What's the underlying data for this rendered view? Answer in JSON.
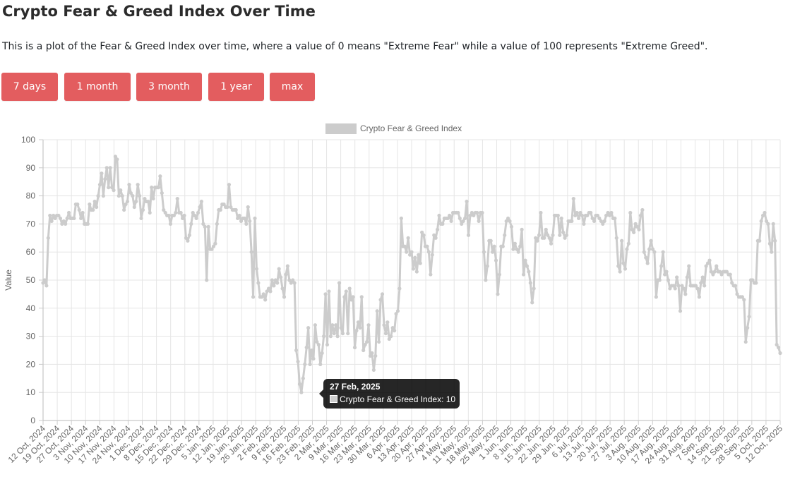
{
  "page": {
    "title": "Crypto Fear & Greed Index Over Time",
    "description": "This is a plot of the Fear & Greed Index over time, where a value of 0 means \"Extreme Fear\" while a value of 100 represents \"Extreme Greed\".",
    "accent_color": "#e35d5f"
  },
  "range_buttons": [
    {
      "label": "7 days"
    },
    {
      "label": "1 month"
    },
    {
      "label": "3 month"
    },
    {
      "label": "1 year"
    },
    {
      "label": "max"
    }
  ],
  "tooltip": {
    "title": "27 Feb, 2025",
    "label": "Crypto Fear & Greed Index: 10"
  },
  "chart_data": {
    "type": "line",
    "legend": "Crypto Fear & Greed Index",
    "legend_position": "top-center",
    "ylabel": "Value",
    "xlabel": "",
    "ylim": [
      0,
      100
    ],
    "yticks": [
      0,
      10,
      20,
      30,
      40,
      50,
      60,
      70,
      80,
      90,
      100
    ],
    "grid": true,
    "line_color": "#cccccc",
    "x_start": "12 Oct, 2024",
    "x_end": "12 Oct, 2025",
    "xtick_labels": [
      "12 Oct, 2024",
      "19 Oct, 2024",
      "27 Oct, 2024",
      "3 Nov, 2024",
      "10 Nov, 2024",
      "17 Nov, 2024",
      "24 Nov, 2024",
      "1 Dec, 2024",
      "8 Dec, 2024",
      "15 Dec, 2024",
      "22 Dec, 2024",
      "29 Dec, 2024",
      "5 Jan, 2025",
      "12 Jan, 2025",
      "19 Jan, 2025",
      "26 Jan, 2025",
      "2 Feb, 2025",
      "9 Feb, 2025",
      "16 Feb, 2025",
      "23 Feb, 2025",
      "2 Mar, 2025",
      "9 Mar, 2025",
      "16 Mar, 2025",
      "23 Mar, 2025",
      "30 Mar, 2025",
      "6 Apr, 2025",
      "13 Apr, 2025",
      "20 Apr, 2025",
      "27 Apr, 2025",
      "4 May, 2025",
      "11 May, 2025",
      "18 May, 2025",
      "25 May, 2025",
      "1 Jun, 2025",
      "8 Jun, 2025",
      "15 Jun, 2025",
      "22 Jun, 2025",
      "29 Jun, 2025",
      "6 Jul, 2025",
      "13 Jul, 2025",
      "20 Jul, 2025",
      "27 Jul, 2025",
      "3 Aug, 2025",
      "10 Aug, 2025",
      "17 Aug, 2025",
      "24 Aug, 2025",
      "31 Aug, 2025",
      "7 Sep, 2025",
      "14 Sep, 2025",
      "21 Sep, 2025",
      "28 Sep, 2025",
      "5 Oct, 2025",
      "12 Oct, 2025"
    ],
    "values": [
      49,
      50,
      48,
      65,
      73,
      71,
      73,
      72,
      73,
      73,
      72,
      70,
      71,
      70,
      72,
      74,
      72,
      72,
      72,
      77,
      77,
      75,
      72,
      74,
      70,
      70,
      70,
      77,
      75,
      75,
      78,
      76,
      80,
      84,
      88,
      80,
      86,
      90,
      83,
      90,
      83,
      82,
      94,
      93,
      80,
      82,
      80,
      75,
      77,
      78,
      84,
      81,
      80,
      76,
      78,
      84,
      80,
      72,
      75,
      79,
      78,
      78,
      74,
      83,
      79,
      83,
      83,
      83,
      87,
      81,
      75,
      74,
      73,
      73,
      70,
      73,
      73,
      74,
      79,
      74,
      74,
      72,
      73,
      65,
      64,
      66,
      70,
      74,
      73,
      72,
      74,
      76,
      78,
      70,
      69,
      50,
      69,
      61,
      61,
      62,
      63,
      70,
      75,
      75,
      77,
      77,
      76,
      76,
      84,
      76,
      75,
      75,
      75,
      72,
      73,
      71,
      72,
      72,
      70,
      76,
      71,
      60,
      44,
      72,
      54,
      49,
      44,
      44,
      45,
      43,
      46,
      47,
      46,
      50,
      48,
      50,
      49,
      54,
      51,
      47,
      44,
      52,
      55,
      50,
      49,
      50,
      49,
      25,
      21,
      13,
      10,
      15,
      20,
      26,
      33,
      20,
      25,
      22,
      34,
      28,
      27,
      20,
      24,
      30,
      45,
      27,
      46,
      30,
      34,
      31,
      34,
      30,
      49,
      33,
      31,
      44,
      46,
      31,
      47,
      43,
      44,
      26,
      32,
      35,
      33,
      44,
      25,
      27,
      28,
      34,
      23,
      24,
      18,
      23,
      39,
      28,
      43,
      45,
      34,
      31,
      35,
      29,
      30,
      33,
      32,
      38,
      39,
      47,
      72,
      62,
      62,
      60,
      65,
      59,
      60,
      54,
      58,
      53,
      59,
      56,
      67,
      66,
      62,
      62,
      60,
      52,
      59,
      66,
      65,
      68,
      73,
      70,
      70,
      72,
      72,
      72,
      73,
      71,
      74,
      74,
      74,
      74,
      72,
      70,
      71,
      72,
      78,
      66,
      73,
      74,
      73,
      74,
      74,
      71,
      74,
      74,
      60,
      50,
      55,
      64,
      64,
      60,
      62,
      57,
      45,
      52,
      62,
      62,
      66,
      71,
      72,
      71,
      69,
      61,
      63,
      61,
      60,
      62,
      68,
      52,
      57,
      55,
      53,
      49,
      42,
      47,
      65,
      64,
      66,
      74,
      65,
      65,
      68,
      66,
      65,
      63,
      66,
      73,
      73,
      73,
      66,
      72,
      67,
      65,
      66,
      71,
      71,
      71,
      79,
      73,
      74,
      72,
      74,
      73,
      70,
      73,
      73,
      74,
      74,
      72,
      71,
      73,
      73,
      72,
      71,
      70,
      71,
      73,
      74,
      73,
      74,
      72,
      72,
      65,
      55,
      53,
      64,
      56,
      54,
      61,
      63,
      74,
      68,
      67,
      70,
      69,
      68,
      73,
      75,
      60,
      58,
      56,
      61,
      64,
      61,
      60,
      44,
      50,
      50,
      55,
      60,
      52,
      53,
      50,
      47,
      48,
      48,
      47,
      51,
      48,
      39,
      48,
      47,
      45,
      51,
      55,
      48,
      48,
      48,
      48,
      47,
      44,
      49,
      51,
      48,
      55,
      56,
      57,
      53,
      52,
      53,
      55,
      53,
      53,
      52,
      53,
      53,
      53,
      52,
      52,
      49,
      48,
      48,
      45,
      44,
      44,
      44,
      43,
      28,
      33,
      37,
      50,
      50,
      49,
      49,
      64,
      64,
      71,
      73,
      74,
      71,
      70,
      63,
      60,
      70,
      64,
      27,
      26,
      24
    ]
  }
}
